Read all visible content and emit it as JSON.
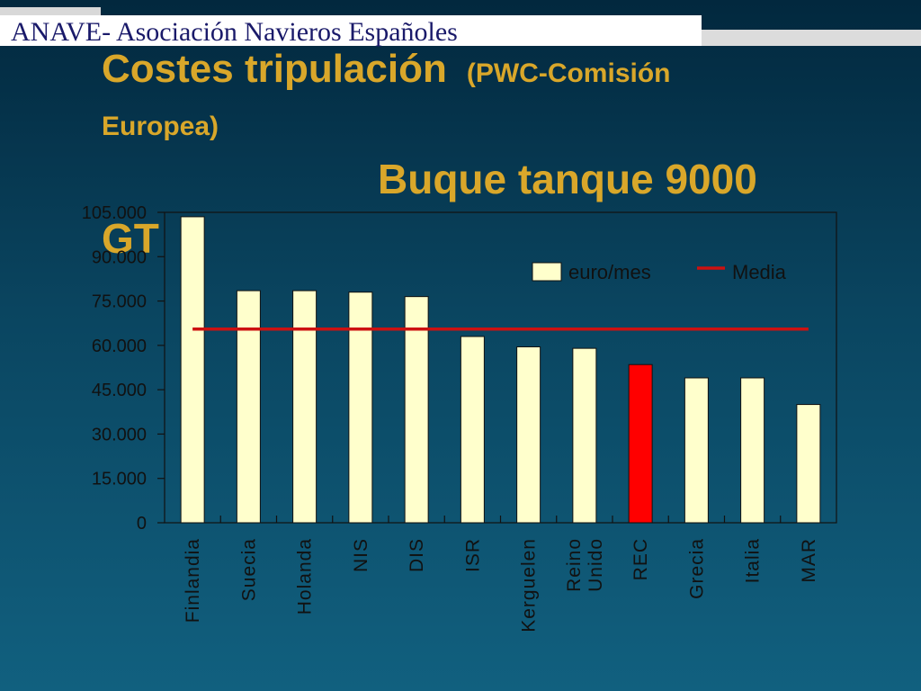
{
  "header": {
    "org": "ANAVE- Asociación Navieros Españoles",
    "title_main": "Costes tripulación",
    "title_source": "(PWC-Comisión",
    "title_source_cont": "Europea)",
    "subtitle": "Buque tanque 9000",
    "subtitle_cont": "GT"
  },
  "colors": {
    "bar": "#ffffcc",
    "highlight": "#ff0000",
    "media": "#cc1111",
    "text": "#d9a72a"
  },
  "chart_data": {
    "type": "bar",
    "categories": [
      "Finlandia",
      "Suecia",
      "Holanda",
      "NIS",
      "DIS",
      "ISR",
      "Kerguelen",
      "Reino Unido",
      "REC",
      "Grecia",
      "Italia",
      "MAR"
    ],
    "series": [
      {
        "name": "euro/mes",
        "values": [
          103500,
          78500,
          78500,
          78000,
          76500,
          63000,
          59500,
          59000,
          53500,
          49000,
          49000,
          40000
        ]
      },
      {
        "name": "Media",
        "type": "line",
        "values": [
          65500,
          65500,
          65500,
          65500,
          65500,
          65500,
          65500,
          65500,
          65500,
          65500,
          65500,
          65500
        ]
      }
    ],
    "highlight_category": "REC",
    "ylim": [
      0,
      105000
    ],
    "yticks": [
      0,
      15000,
      30000,
      45000,
      60000,
      75000,
      90000,
      105000
    ],
    "ytick_labels": [
      "0",
      "15.000",
      "30.000",
      "45.000",
      "60.000",
      "75.000",
      "90.000",
      "105.000"
    ],
    "legend_position": "top-right",
    "grid": false
  }
}
